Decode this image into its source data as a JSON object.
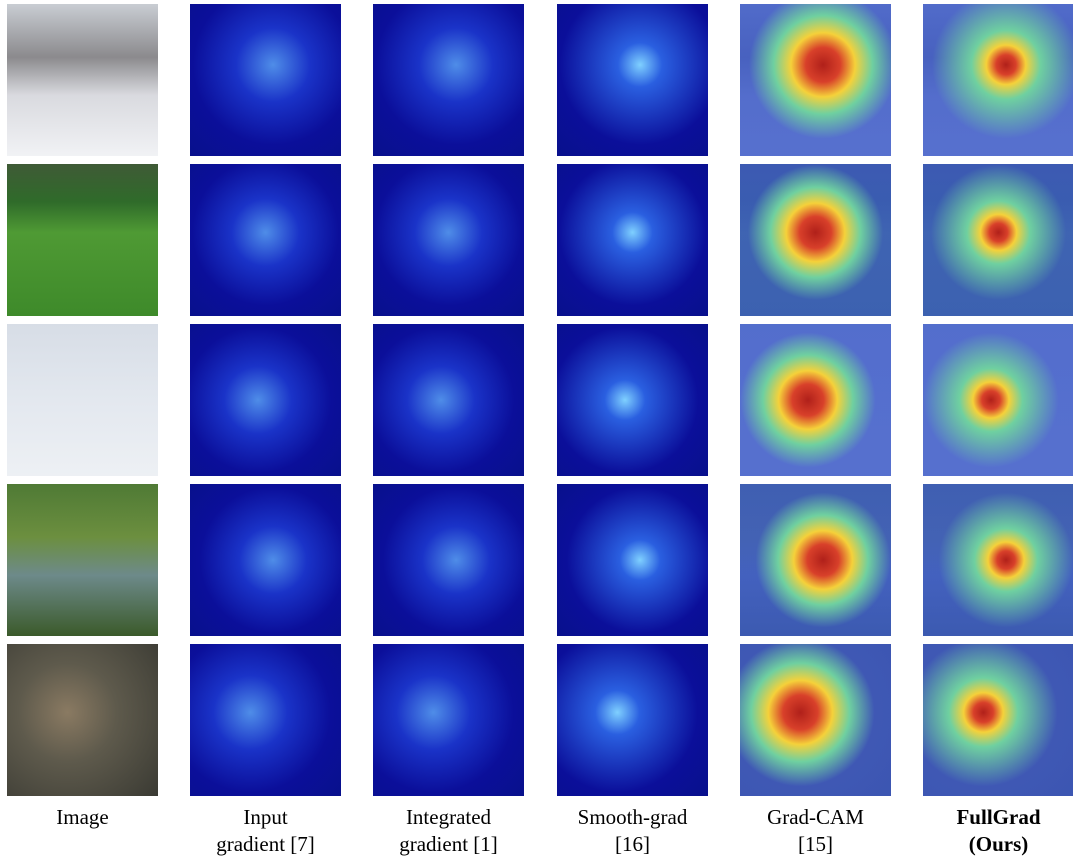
{
  "columns": [
    {
      "lines": [
        "Image"
      ]
    },
    {
      "lines": [
        "Input",
        "gradient [7]"
      ]
    },
    {
      "lines": [
        "Integrated",
        "gradient [1]"
      ]
    },
    {
      "lines": [
        "Smooth-grad",
        "[16]"
      ]
    },
    {
      "lines": [
        "Grad-CAM",
        "[15]"
      ]
    },
    {
      "lines": [
        "FullGrad",
        "(Ours)"
      ],
      "bold": true
    }
  ]
}
